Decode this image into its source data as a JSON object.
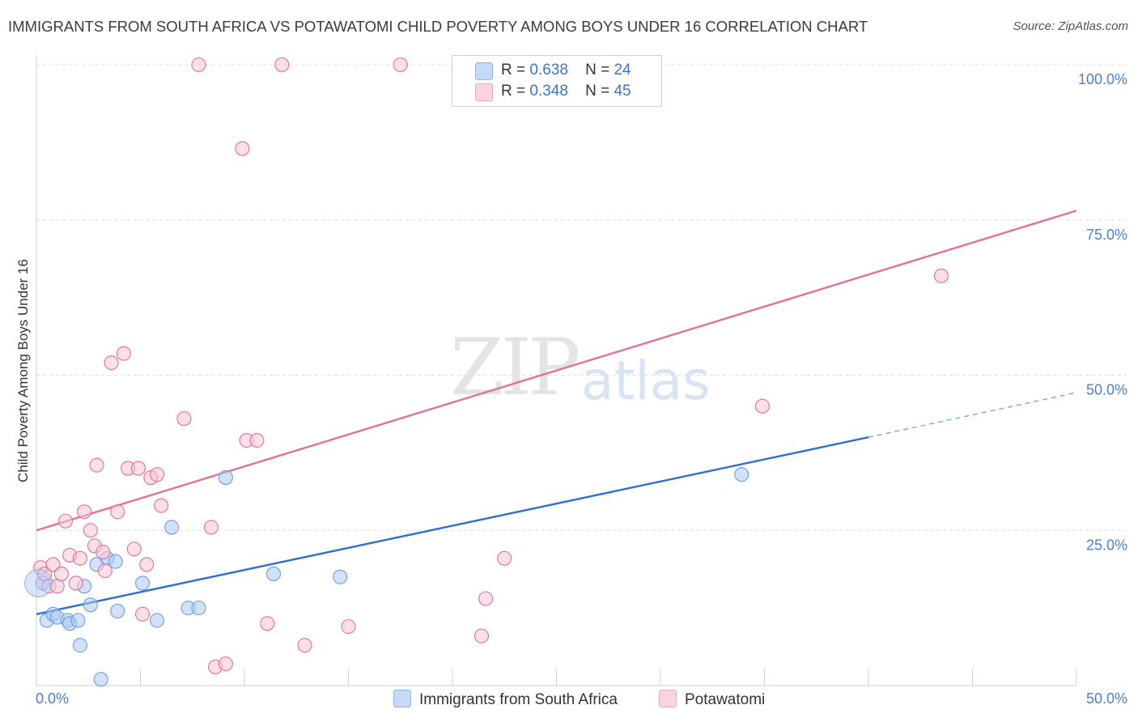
{
  "title": "IMMIGRANTS FROM SOUTH AFRICA VS POTAWATOMI CHILD POVERTY AMONG BOYS UNDER 16 CORRELATION CHART",
  "source": "Source: ZipAtlas.com",
  "watermark": {
    "zip": "ZIP",
    "atlas": "atlas"
  },
  "legend": [
    {
      "name": "Immigrants from South Africa",
      "r_label": "R =",
      "r": "0.638",
      "n_label": "N =",
      "n": "24",
      "color": "#aac8f2",
      "edge": "#6f9ee0"
    },
    {
      "name": "Potawatomi",
      "r_label": "R =",
      "r": "0.348",
      "n_label": "N =",
      "n": "45",
      "color": "#f9c4d4",
      "edge": "#e89ab3"
    }
  ],
  "chart_data": {
    "type": "scatter",
    "title": "IMMIGRANTS FROM SOUTH AFRICA VS POTAWATOMI CHILD POVERTY AMONG BOYS UNDER 16 CORRELATION CHART",
    "xlabel": "",
    "ylabel": "Child Poverty Among Boys Under 16",
    "xlim": [
      0,
      50
    ],
    "ylim": [
      0,
      100
    ],
    "x_tick_labels": [
      "0.0%",
      "50.0%"
    ],
    "y_tick_labels": [
      "25.0%",
      "50.0%",
      "75.0%",
      "100.0%"
    ],
    "y_ticks": [
      25,
      50,
      75,
      100
    ],
    "grid": true,
    "series": [
      {
        "name": "Immigrants from South Africa",
        "color": "#6f9ee0",
        "fill": "#aac8f2",
        "points": [
          [
            0.3,
            16.5
          ],
          [
            0.5,
            10.5
          ],
          [
            0.8,
            11.5
          ],
          [
            1.0,
            11.0
          ],
          [
            1.5,
            10.5
          ],
          [
            1.6,
            10.0
          ],
          [
            2.0,
            10.5
          ],
          [
            2.1,
            6.5
          ],
          [
            2.3,
            16
          ],
          [
            2.6,
            13
          ],
          [
            2.9,
            19.5
          ],
          [
            3.1,
            1
          ],
          [
            3.4,
            20.5
          ],
          [
            3.8,
            20
          ],
          [
            3.9,
            12
          ],
          [
            5.1,
            16.5
          ],
          [
            5.8,
            10.5
          ],
          [
            6.5,
            25.5
          ],
          [
            7.3,
            12.5
          ],
          [
            7.8,
            12.5
          ],
          [
            9.1,
            33.5
          ],
          [
            11.4,
            18
          ],
          [
            14.6,
            17.5
          ],
          [
            33.9,
            34
          ]
        ],
        "trend": {
          "x": [
            0,
            40,
            50
          ],
          "y": [
            11.5,
            40,
            47.2
          ],
          "solid_until": 40
        }
      },
      {
        "name": "Potawatomi",
        "color": "#e46f97",
        "fill": "#f9c4d4",
        "points": [
          [
            0.2,
            19
          ],
          [
            0.4,
            18
          ],
          [
            0.6,
            16
          ],
          [
            0.8,
            19.5
          ],
          [
            1.0,
            16
          ],
          [
            1.2,
            18
          ],
          [
            1.4,
            26.5
          ],
          [
            1.6,
            21
          ],
          [
            1.9,
            16.5
          ],
          [
            2.1,
            20.5
          ],
          [
            2.3,
            28
          ],
          [
            2.6,
            25
          ],
          [
            2.8,
            22.5
          ],
          [
            2.9,
            35.5
          ],
          [
            3.2,
            21.5
          ],
          [
            3.3,
            18.5
          ],
          [
            3.6,
            52
          ],
          [
            3.9,
            28
          ],
          [
            4.2,
            53.5
          ],
          [
            4.4,
            35
          ],
          [
            4.7,
            22
          ],
          [
            4.9,
            35
          ],
          [
            5.1,
            11.5
          ],
          [
            5.3,
            19.5
          ],
          [
            5.5,
            33.5
          ],
          [
            5.8,
            34
          ],
          [
            6.0,
            29
          ],
          [
            7.1,
            43
          ],
          [
            8.4,
            25.5
          ],
          [
            8.6,
            3
          ],
          [
            9.1,
            3.5
          ],
          [
            9.9,
            86.5
          ],
          [
            10.1,
            39.5
          ],
          [
            10.6,
            39.5
          ],
          [
            11.1,
            10
          ],
          [
            12.9,
            6.5
          ],
          [
            15.0,
            9.5
          ],
          [
            7.8,
            100
          ],
          [
            11.8,
            100
          ],
          [
            17.5,
            100
          ],
          [
            21.4,
            8
          ],
          [
            21.6,
            14
          ],
          [
            22.5,
            20.5
          ],
          [
            34.9,
            45
          ],
          [
            43.5,
            66
          ]
        ],
        "trend": {
          "x": [
            0,
            50
          ],
          "y": [
            25,
            76.5
          ]
        }
      }
    ]
  }
}
